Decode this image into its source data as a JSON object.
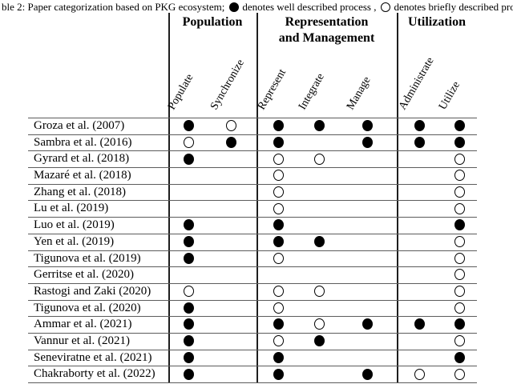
{
  "caption": {
    "prefix": "ble 2: Paper categorization based on PKG ecosystem;",
    "well_text": "denotes well described process ,",
    "brief_text": "denotes briefly described process .",
    "legend": {
      "filled_circle_means": "well described process",
      "open_circle_means": "briefly described process"
    }
  },
  "table": {
    "groups": [
      {
        "label": "Population",
        "lines": [
          "Population"
        ]
      },
      {
        "label": "Representation and Management",
        "lines": [
          "Representation",
          "and Management"
        ]
      },
      {
        "label": "Utilization",
        "lines": [
          "Utilization"
        ]
      }
    ],
    "columns": [
      "Populate",
      "Synchronize",
      "Represent",
      "Integrate",
      "Manage",
      "Administrate",
      "Utilize"
    ],
    "rows": [
      {
        "label": "Groza et al. (2007)",
        "cells": [
          "filled",
          "open",
          "filled",
          "filled",
          "filled",
          "filled",
          "filled"
        ]
      },
      {
        "label": "Sambra et al. (2016)",
        "cells": [
          "open",
          "filled",
          "filled",
          "",
          "filled",
          "filled",
          "filled"
        ]
      },
      {
        "label": "Gyrard et al. (2018)",
        "cells": [
          "filled",
          "",
          "open",
          "open",
          "",
          "",
          "open"
        ]
      },
      {
        "label": "Mazaré et al. (2018)",
        "cells": [
          "",
          "",
          "open",
          "",
          "",
          "",
          "open"
        ]
      },
      {
        "label": "Zhang et al. (2018)",
        "cells": [
          "",
          "",
          "open",
          "",
          "",
          "",
          "open"
        ]
      },
      {
        "label": "Lu et al. (2019)",
        "cells": [
          "",
          "",
          "open",
          "",
          "",
          "",
          "open"
        ]
      },
      {
        "label": "Luo et al. (2019)",
        "cells": [
          "filled",
          "",
          "filled",
          "",
          "",
          "",
          "filled"
        ]
      },
      {
        "label": "Yen et al. (2019)",
        "cells": [
          "filled",
          "",
          "filled",
          "filled",
          "",
          "",
          "open"
        ]
      },
      {
        "label": "Tigunova et al. (2019)",
        "cells": [
          "filled",
          "",
          "open",
          "",
          "",
          "",
          "open"
        ]
      },
      {
        "label": "Gerritse et al. (2020)",
        "cells": [
          "",
          "",
          "",
          "",
          "",
          "",
          "open"
        ]
      },
      {
        "label": "Rastogi and Zaki (2020)",
        "cells": [
          "open",
          "",
          "open",
          "open",
          "",
          "",
          "open"
        ]
      },
      {
        "label": "Tigunova et al. (2020)",
        "cells": [
          "filled",
          "",
          "open",
          "",
          "",
          "",
          "open"
        ]
      },
      {
        "label": "Ammar et al. (2021)",
        "cells": [
          "filled",
          "",
          "filled",
          "open",
          "filled",
          "filled",
          "filled"
        ]
      },
      {
        "label": "Vannur et al. (2021)",
        "cells": [
          "filled",
          "",
          "open",
          "filled",
          "",
          "",
          "open"
        ]
      },
      {
        "label": "Seneviratne et al. (2021)",
        "cells": [
          "filled",
          "",
          "filled",
          "",
          "",
          "",
          "filled"
        ]
      },
      {
        "label": "Chakraborty et al. (2022)",
        "cells": [
          "filled",
          "",
          "filled",
          "",
          "filled",
          "open",
          "open"
        ]
      }
    ]
  },
  "colors": {
    "ink": "#000000",
    "rule_h": "#5c5c5c",
    "rule_v": "#1e1e1e",
    "background": "#ffffff"
  }
}
